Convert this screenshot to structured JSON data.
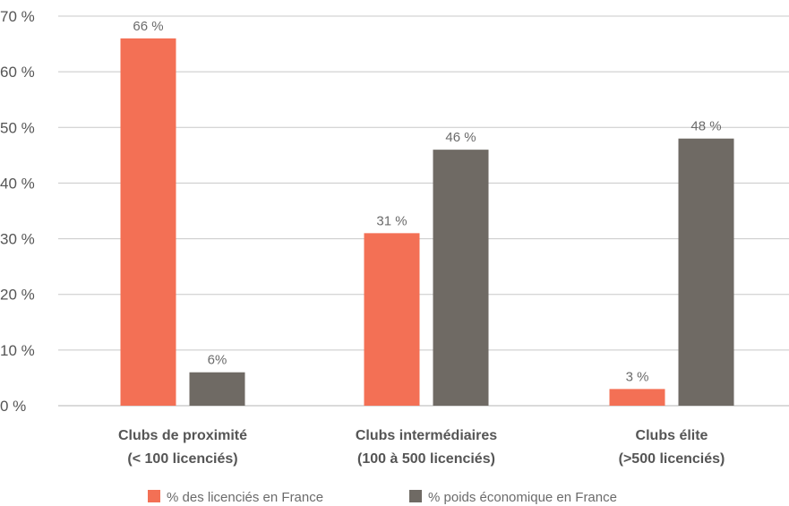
{
  "chart_data": {
    "type": "bar",
    "categories": [
      [
        "Clubs de proximité",
        "(< 100 licenciés)"
      ],
      [
        "Clubs intermédiaires",
        "(100 à 500 licenciés)"
      ],
      [
        "Clubs élite",
        "(>500 licenciés)"
      ]
    ],
    "y_ticks": [
      "0 %",
      "10 %",
      "20 %",
      "30 %",
      "40 %",
      "50 %",
      "60 %",
      "70 %"
    ],
    "ylim": [
      0,
      70
    ],
    "grid": true,
    "legend_position": "bottom",
    "series": [
      {
        "name": "% des licenciés en France",
        "color": "#f37055",
        "values": [
          66,
          31,
          3
        ],
        "labels": [
          "66 %",
          "31 %",
          "3 %"
        ]
      },
      {
        "name": "% poids économique en France",
        "color": "#6f6a64",
        "values": [
          6,
          46,
          48
        ],
        "labels": [
          "6%",
          "46 %",
          "48 %"
        ]
      }
    ]
  }
}
